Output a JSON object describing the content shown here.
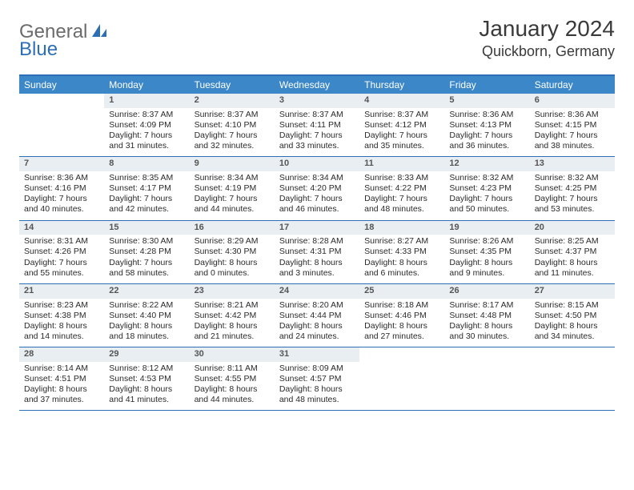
{
  "logo": {
    "text1": "General",
    "text2": "Blue"
  },
  "title": "January 2024",
  "location": "Quickborn, Germany",
  "colors": {
    "accent": "#3b87c8",
    "accent_dark": "#2d6fb4",
    "daynum_bg": "#e9eef2",
    "text": "#2a2a2a",
    "logo_grey": "#6b6b6b"
  },
  "dow": [
    "Sunday",
    "Monday",
    "Tuesday",
    "Wednesday",
    "Thursday",
    "Friday",
    "Saturday"
  ],
  "weeks": [
    [
      null,
      {
        "n": "1",
        "sr": "Sunrise: 8:37 AM",
        "ss": "Sunset: 4:09 PM",
        "d1": "Daylight: 7 hours",
        "d2": "and 31 minutes."
      },
      {
        "n": "2",
        "sr": "Sunrise: 8:37 AM",
        "ss": "Sunset: 4:10 PM",
        "d1": "Daylight: 7 hours",
        "d2": "and 32 minutes."
      },
      {
        "n": "3",
        "sr": "Sunrise: 8:37 AM",
        "ss": "Sunset: 4:11 PM",
        "d1": "Daylight: 7 hours",
        "d2": "and 33 minutes."
      },
      {
        "n": "4",
        "sr": "Sunrise: 8:37 AM",
        "ss": "Sunset: 4:12 PM",
        "d1": "Daylight: 7 hours",
        "d2": "and 35 minutes."
      },
      {
        "n": "5",
        "sr": "Sunrise: 8:36 AM",
        "ss": "Sunset: 4:13 PM",
        "d1": "Daylight: 7 hours",
        "d2": "and 36 minutes."
      },
      {
        "n": "6",
        "sr": "Sunrise: 8:36 AM",
        "ss": "Sunset: 4:15 PM",
        "d1": "Daylight: 7 hours",
        "d2": "and 38 minutes."
      }
    ],
    [
      {
        "n": "7",
        "sr": "Sunrise: 8:36 AM",
        "ss": "Sunset: 4:16 PM",
        "d1": "Daylight: 7 hours",
        "d2": "and 40 minutes."
      },
      {
        "n": "8",
        "sr": "Sunrise: 8:35 AM",
        "ss": "Sunset: 4:17 PM",
        "d1": "Daylight: 7 hours",
        "d2": "and 42 minutes."
      },
      {
        "n": "9",
        "sr": "Sunrise: 8:34 AM",
        "ss": "Sunset: 4:19 PM",
        "d1": "Daylight: 7 hours",
        "d2": "and 44 minutes."
      },
      {
        "n": "10",
        "sr": "Sunrise: 8:34 AM",
        "ss": "Sunset: 4:20 PM",
        "d1": "Daylight: 7 hours",
        "d2": "and 46 minutes."
      },
      {
        "n": "11",
        "sr": "Sunrise: 8:33 AM",
        "ss": "Sunset: 4:22 PM",
        "d1": "Daylight: 7 hours",
        "d2": "and 48 minutes."
      },
      {
        "n": "12",
        "sr": "Sunrise: 8:32 AM",
        "ss": "Sunset: 4:23 PM",
        "d1": "Daylight: 7 hours",
        "d2": "and 50 minutes."
      },
      {
        "n": "13",
        "sr": "Sunrise: 8:32 AM",
        "ss": "Sunset: 4:25 PM",
        "d1": "Daylight: 7 hours",
        "d2": "and 53 minutes."
      }
    ],
    [
      {
        "n": "14",
        "sr": "Sunrise: 8:31 AM",
        "ss": "Sunset: 4:26 PM",
        "d1": "Daylight: 7 hours",
        "d2": "and 55 minutes."
      },
      {
        "n": "15",
        "sr": "Sunrise: 8:30 AM",
        "ss": "Sunset: 4:28 PM",
        "d1": "Daylight: 7 hours",
        "d2": "and 58 minutes."
      },
      {
        "n": "16",
        "sr": "Sunrise: 8:29 AM",
        "ss": "Sunset: 4:30 PM",
        "d1": "Daylight: 8 hours",
        "d2": "and 0 minutes."
      },
      {
        "n": "17",
        "sr": "Sunrise: 8:28 AM",
        "ss": "Sunset: 4:31 PM",
        "d1": "Daylight: 8 hours",
        "d2": "and 3 minutes."
      },
      {
        "n": "18",
        "sr": "Sunrise: 8:27 AM",
        "ss": "Sunset: 4:33 PM",
        "d1": "Daylight: 8 hours",
        "d2": "and 6 minutes."
      },
      {
        "n": "19",
        "sr": "Sunrise: 8:26 AM",
        "ss": "Sunset: 4:35 PM",
        "d1": "Daylight: 8 hours",
        "d2": "and 9 minutes."
      },
      {
        "n": "20",
        "sr": "Sunrise: 8:25 AM",
        "ss": "Sunset: 4:37 PM",
        "d1": "Daylight: 8 hours",
        "d2": "and 11 minutes."
      }
    ],
    [
      {
        "n": "21",
        "sr": "Sunrise: 8:23 AM",
        "ss": "Sunset: 4:38 PM",
        "d1": "Daylight: 8 hours",
        "d2": "and 14 minutes."
      },
      {
        "n": "22",
        "sr": "Sunrise: 8:22 AM",
        "ss": "Sunset: 4:40 PM",
        "d1": "Daylight: 8 hours",
        "d2": "and 18 minutes."
      },
      {
        "n": "23",
        "sr": "Sunrise: 8:21 AM",
        "ss": "Sunset: 4:42 PM",
        "d1": "Daylight: 8 hours",
        "d2": "and 21 minutes."
      },
      {
        "n": "24",
        "sr": "Sunrise: 8:20 AM",
        "ss": "Sunset: 4:44 PM",
        "d1": "Daylight: 8 hours",
        "d2": "and 24 minutes."
      },
      {
        "n": "25",
        "sr": "Sunrise: 8:18 AM",
        "ss": "Sunset: 4:46 PM",
        "d1": "Daylight: 8 hours",
        "d2": "and 27 minutes."
      },
      {
        "n": "26",
        "sr": "Sunrise: 8:17 AM",
        "ss": "Sunset: 4:48 PM",
        "d1": "Daylight: 8 hours",
        "d2": "and 30 minutes."
      },
      {
        "n": "27",
        "sr": "Sunrise: 8:15 AM",
        "ss": "Sunset: 4:50 PM",
        "d1": "Daylight: 8 hours",
        "d2": "and 34 minutes."
      }
    ],
    [
      {
        "n": "28",
        "sr": "Sunrise: 8:14 AM",
        "ss": "Sunset: 4:51 PM",
        "d1": "Daylight: 8 hours",
        "d2": "and 37 minutes."
      },
      {
        "n": "29",
        "sr": "Sunrise: 8:12 AM",
        "ss": "Sunset: 4:53 PM",
        "d1": "Daylight: 8 hours",
        "d2": "and 41 minutes."
      },
      {
        "n": "30",
        "sr": "Sunrise: 8:11 AM",
        "ss": "Sunset: 4:55 PM",
        "d1": "Daylight: 8 hours",
        "d2": "and 44 minutes."
      },
      {
        "n": "31",
        "sr": "Sunrise: 8:09 AM",
        "ss": "Sunset: 4:57 PM",
        "d1": "Daylight: 8 hours",
        "d2": "and 48 minutes."
      },
      null,
      null,
      null
    ]
  ]
}
